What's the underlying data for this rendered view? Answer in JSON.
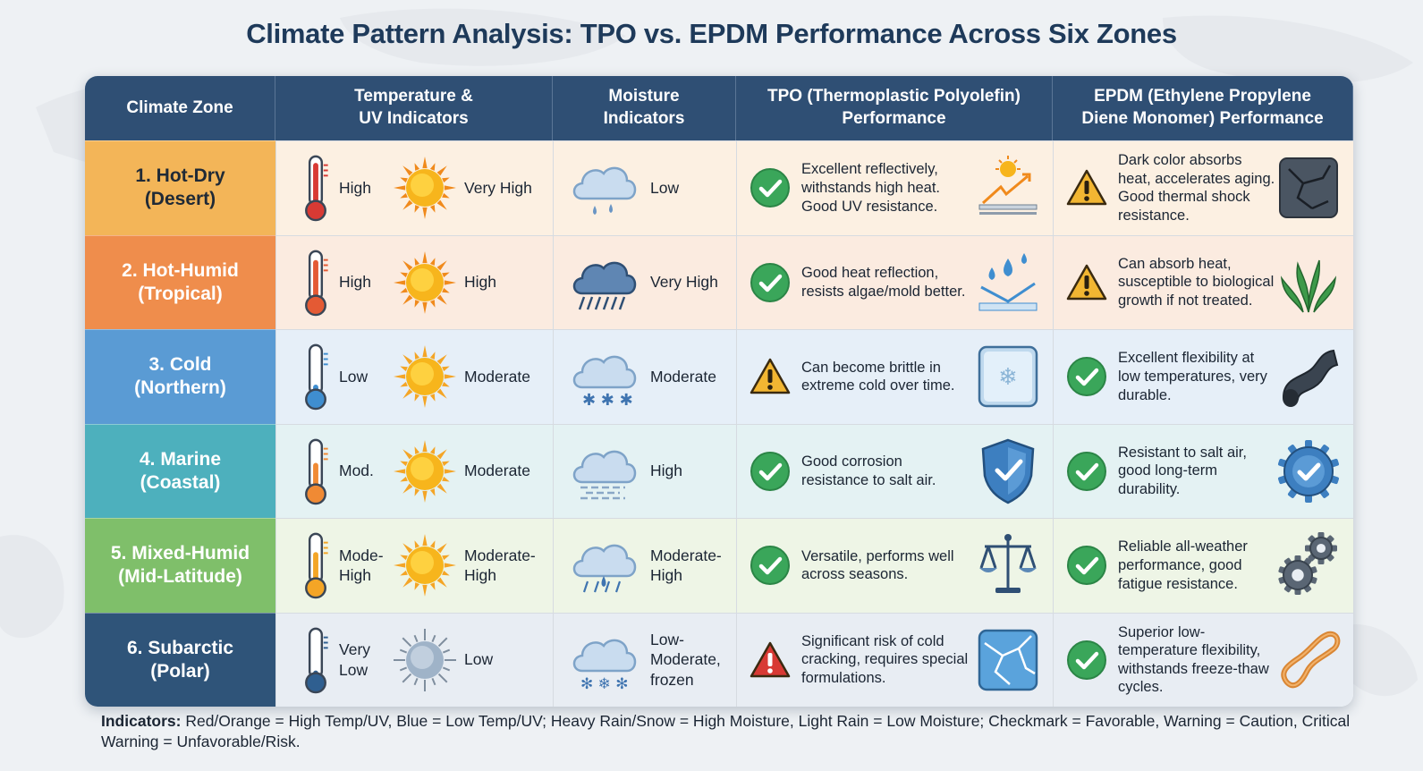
{
  "title": "Climate Pattern Analysis: TPO vs. EPDM Performance Across Six Zones",
  "headers": {
    "zone": "Climate Zone",
    "temp_1": "Temperature &",
    "temp_2": "UV Indicators",
    "moist_1": "Moisture",
    "moist_2": "Indicators",
    "tpo_1": "TPO (Thermoplastic Polyolefin)",
    "tpo_2": "Performance",
    "epdm_1": "EPDM (Ethylene Propylene",
    "epdm_2": "Diene Monomer) Performance"
  },
  "rows": [
    {
      "zone_1": "1. Hot-Dry",
      "zone_2": "(Desert)",
      "zone_color": "#f3b558",
      "temp": "High",
      "uv": "Very High",
      "moisture": "Low",
      "tpo_status": "check",
      "tpo": "Excellent reflectively, withstands high heat. Good UV resistance.",
      "tpo_icon": "sun-reflection-icon",
      "epdm_status": "warning",
      "epdm": "Dark color absorbs heat, accelerates aging. Good thermal shock resistance.",
      "epdm_icon": "cracked-surface-icon",
      "bg": "#fcf0e2"
    },
    {
      "zone_1": "2. Hot-Humid",
      "zone_2": "(Tropical)",
      "zone_color": "#ef8d4c",
      "temp": "High",
      "uv": "High",
      "moisture": "Very High",
      "tpo_status": "check",
      "tpo": "Good heat reflection, resists algae/mold better.",
      "tpo_icon": "water-drops-icon",
      "epdm_status": "warning",
      "epdm": "Can absorb heat, susceptible to biological growth if not treated.",
      "epdm_icon": "algae-icon",
      "bg": "#fbebe0"
    },
    {
      "zone_1": "3. Cold",
      "zone_2": "(Northern)",
      "zone_color": "#5a9bd4",
      "temp": "Low",
      "uv": "Moderate",
      "moisture": "Moderate",
      "tpo_status": "warning",
      "tpo": "Can become brittle in extreme cold over time.",
      "tpo_icon": "frost-panel-icon",
      "epdm_status": "check",
      "epdm": "Excellent flexibility at low temperatures, very durable.",
      "epdm_icon": "flexible-pipe-icon",
      "bg": "#e6eff8"
    },
    {
      "zone_1": "4. Marine",
      "zone_2": "(Coastal)",
      "zone_color": "#4db0bd",
      "temp": "Mod.",
      "uv": "Moderate",
      "moisture": "High",
      "tpo_status": "check",
      "tpo": "Good corrosion resistance to salt air.",
      "tpo_icon": "shield-check-icon",
      "epdm_status": "check",
      "epdm": "Resistant to salt air, good long-term durability.",
      "epdm_icon": "gear-badge-icon",
      "bg": "#e4f2f3"
    },
    {
      "zone_1": "5. Mixed-Humid",
      "zone_2": "(Mid-Latitude)",
      "zone_color": "#7fbf6a",
      "temp": "Mode-High",
      "uv": "Moderate-High",
      "moisture": "Moderate-High",
      "tpo_status": "check",
      "tpo": "Versatile, performs well across seasons.",
      "tpo_icon": "balance-scale-icon",
      "epdm_status": "check",
      "epdm": "Reliable all-weather performance, good fatigue resistance.",
      "epdm_icon": "gears-icon",
      "bg": "#eef5e6"
    },
    {
      "zone_1": "6. Subarctic",
      "zone_2": "(Polar)",
      "zone_color": "#2f5479",
      "temp": "Very Low",
      "uv": "Low",
      "moisture": "Low-Moderate, frozen",
      "tpo_status": "critical",
      "tpo": "Significant risk of cold cracking, requires special formulations.",
      "tpo_icon": "cracked-ice-icon",
      "epdm_status": "check",
      "epdm": "Superior low-temperature flexibility, withstands freeze-thaw cycles.",
      "epdm_icon": "flexible-band-icon",
      "bg": "#e8edf3"
    }
  ],
  "footer": {
    "label": "Indicators:",
    "text": " Red/Orange = High Temp/UV, Blue = Low Temp/UV; Heavy Rain/Snow = High Moisture, Light Rain = Low Moisture; Checkmark = Favorable, Warning = Caution, Critical Warning = Unfavorable/Risk."
  },
  "colors": {
    "header": "#2f4f74",
    "check": "#3aa65a",
    "warning": "#f2b632",
    "critical": "#d83a34",
    "title": "#1e3a5a"
  }
}
